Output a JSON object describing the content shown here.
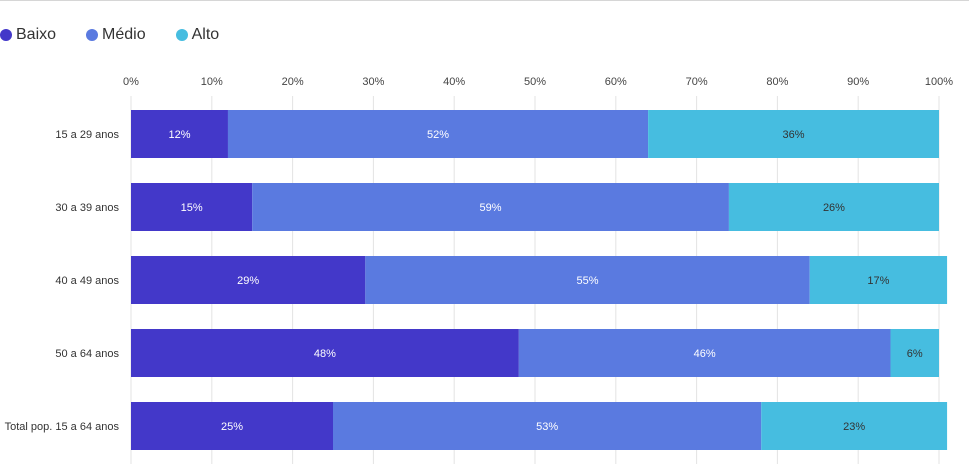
{
  "legend": [
    {
      "label": "Baixo",
      "color": "#4338c9"
    },
    {
      "label": "Médio",
      "color": "#5a7ae0"
    },
    {
      "label": "Alto",
      "color": "#46bde0"
    }
  ],
  "chart_data": {
    "type": "bar",
    "orientation": "horizontal",
    "stacked": true,
    "normalized": true,
    "categories": [
      "15 a 29 anos",
      "30 a 39 anos",
      "40 a 49 anos",
      "50 a 64 anos",
      "Total pop. 15 a 64 anos"
    ],
    "series": [
      {
        "name": "Baixo",
        "values": [
          12,
          15,
          29,
          48,
          25
        ],
        "labels": [
          "12%",
          "15%",
          "29%",
          "48%",
          "25%"
        ],
        "color": "#4338c9",
        "label_color": "#ffffff"
      },
      {
        "name": "Médio",
        "values": [
          52,
          59,
          55,
          46,
          53
        ],
        "labels": [
          "52%",
          "59%",
          "55%",
          "46%",
          "53%"
        ],
        "color": "#5a7ae0",
        "label_color": "#ffffff"
      },
      {
        "name": "Alto",
        "values": [
          36,
          26,
          17,
          6,
          23
        ],
        "labels": [
          "36%",
          "26%",
          "17%",
          "6%",
          "23%"
        ],
        "color": "#46bde0",
        "label_color": "#333333"
      }
    ],
    "xlim": [
      0,
      100
    ],
    "xticks": [
      0,
      10,
      20,
      30,
      40,
      50,
      60,
      70,
      80,
      90,
      100
    ],
    "xtick_labels": [
      "0%",
      "10%",
      "20%",
      "30%",
      "40%",
      "50%",
      "60%",
      "70%",
      "80%",
      "90%",
      "100%"
    ],
    "grid": true,
    "legend_position": "top-left"
  }
}
